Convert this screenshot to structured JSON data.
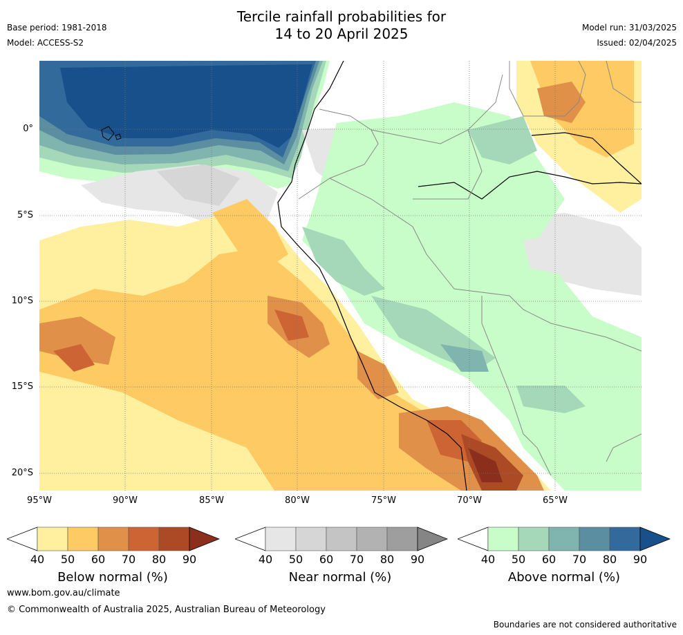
{
  "title": {
    "line1": "Tercile rainfall probabilities for",
    "line2": "14 to 20 April 2025"
  },
  "meta": {
    "base_period": "Base period: 1981-2018",
    "model": "Model: ACCESS-S2",
    "model_run": "Model run: 31/03/2025",
    "issued": "Issued: 02/04/2025"
  },
  "map": {
    "lat_labels": [
      "0°",
      "5°S",
      "10°S",
      "15°S",
      "20°S"
    ],
    "lon_labels": [
      "95°W",
      "90°W",
      "85°W",
      "80°W",
      "75°W",
      "70°W",
      "65°W"
    ],
    "extent": {
      "lon": [
        -95,
        -60
      ],
      "lat": [
        -21,
        4
      ]
    }
  },
  "colorbars": {
    "ticks": [
      "40",
      "50",
      "60",
      "70",
      "80",
      "90"
    ],
    "below": {
      "title": "Below normal (%)",
      "colors": [
        "#fff0a0",
        "#fdca63",
        "#e09048",
        "#cc6434",
        "#ad4a26",
        "#8c2e1c"
      ]
    },
    "near": {
      "title": "Near normal (%)",
      "colors": [
        "#e6e6e6",
        "#d6d6d6",
        "#c4c4c4",
        "#b2b2b2",
        "#9e9e9e",
        "#858585"
      ]
    },
    "above": {
      "title": "Above normal (%)",
      "colors": [
        "#c8fcc8",
        "#a4d8b8",
        "#80b4ae",
        "#5a8ea0",
        "#336a9c",
        "#17508a"
      ]
    }
  },
  "footer": {
    "url": "www.bom.gov.au/climate",
    "copyright": "© Commonwealth of Australia 2025, Australian Bureau of Meteorology",
    "disclaimer": "Boundaries are not considered authoritative"
  }
}
